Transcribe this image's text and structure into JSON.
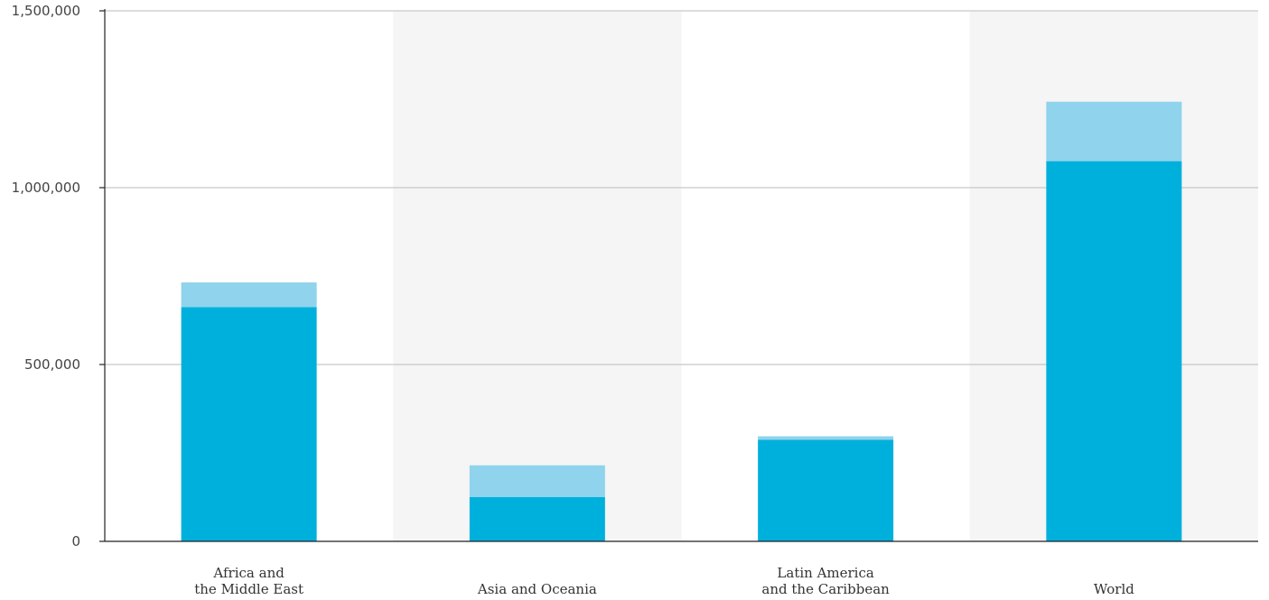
{
  "chart_data": {
    "type": "bar",
    "stacked": true,
    "title": "",
    "xlabel": "",
    "ylabel": "",
    "ylim": [
      0,
      1500000
    ],
    "yticks": [
      0,
      500000,
      1000000,
      1500000
    ],
    "ytick_labels": [
      "0",
      "500,000",
      "1,000,000",
      "1,500,000"
    ],
    "grid": true,
    "legend": "none",
    "categories": [
      [
        "Africa and",
        "the Middle East"
      ],
      [
        "Asia and Oceania"
      ],
      [
        "Latin America",
        "and the Caribbean"
      ],
      [
        "World"
      ]
    ],
    "series": [
      {
        "values": [
          662000,
          125000,
          287000,
          1075000
        ],
        "color": "#00b0dc"
      },
      {
        "values": [
          70000,
          90000,
          10000,
          168000
        ],
        "color": "#8fd3ec"
      }
    ],
    "colors": {
      "band": "#f5f5f5",
      "grid": "#bbbbbb",
      "axis": "#222222"
    }
  }
}
